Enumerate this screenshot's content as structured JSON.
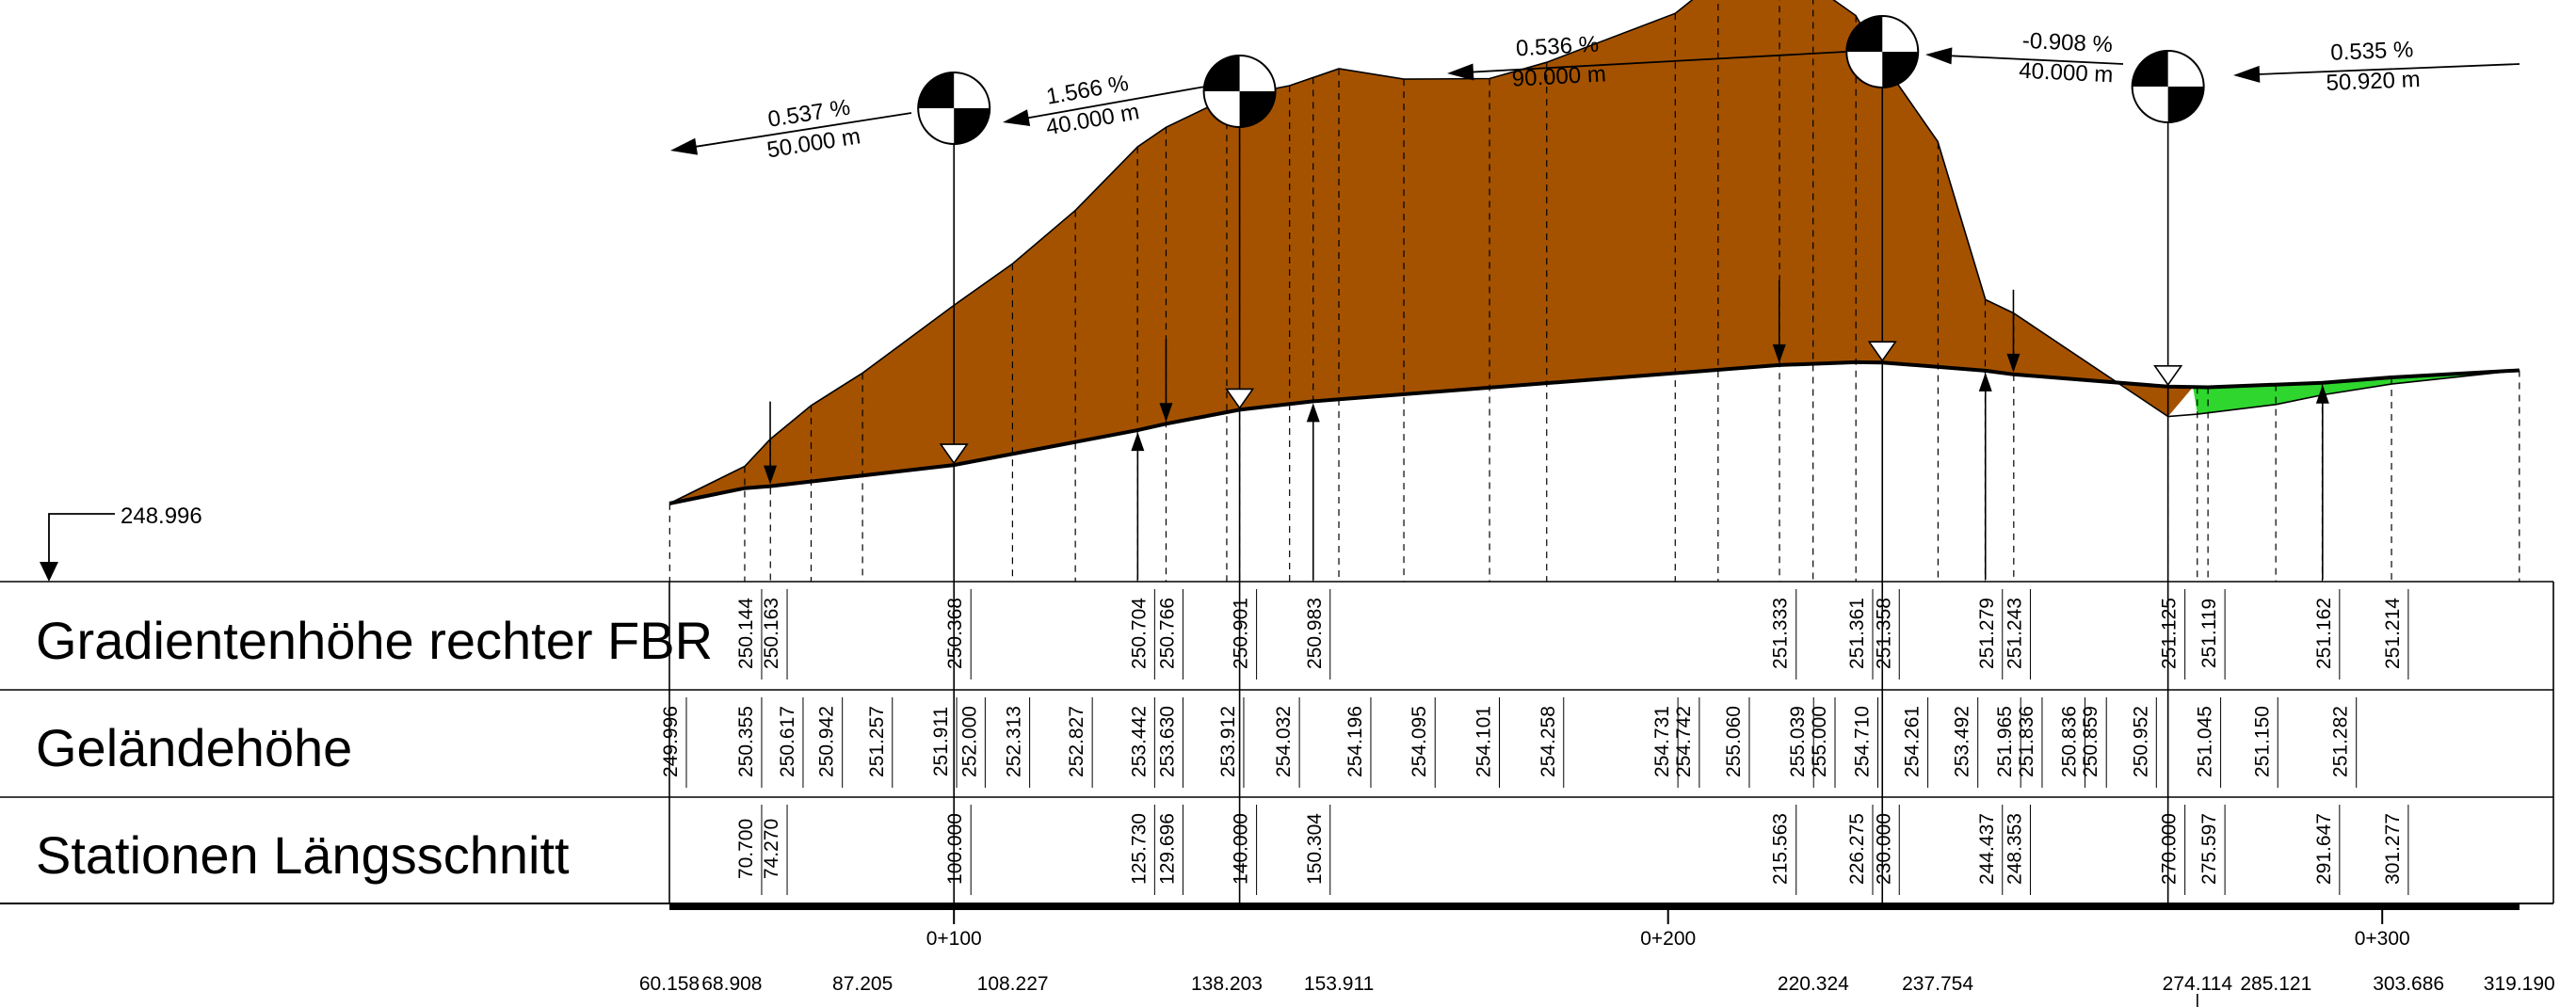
{
  "colors": {
    "cut": "#a45200",
    "fill": "#2ed62e",
    "line": "#000000",
    "background": "#ffffff"
  },
  "reference": {
    "label": "248.996"
  },
  "rows": [
    {
      "label": "Gradientenhöhe rechter FBR"
    },
    {
      "label": "Geländehöhe"
    },
    {
      "label": "Stationen Längsschnitt"
    }
  ],
  "gradient_segments": [
    {
      "slope": "0.537 %",
      "length": "50.000 m"
    },
    {
      "slope": "1.566 %",
      "length": "40.000 m"
    },
    {
      "slope": "0.536 %",
      "length": "90.000 m"
    },
    {
      "slope": "-0.908 %",
      "length": "40.000 m"
    },
    {
      "slope": "0.535 %",
      "length": "50.920 m"
    }
  ],
  "vertical_curve_stations": [
    100,
    140,
    230,
    270
  ],
  "profile_data": {
    "ground": [
      {
        "station": 60.158,
        "elevation": 249.996
      },
      {
        "station": 70.7,
        "elevation": 250.355
      },
      {
        "station": 74.27,
        "elevation": 250.617
      },
      {
        "station": 80.0,
        "elevation": 250.942
      },
      {
        "station": 87.205,
        "elevation": 251.257
      },
      {
        "station": 100.0,
        "elevation": 251.911
      },
      {
        "station": 108.227,
        "elevation": 252.313
      },
      {
        "station": 117.0,
        "elevation": 252.827
      },
      {
        "station": 125.73,
        "elevation": 253.442
      },
      {
        "station": 129.696,
        "elevation": 253.63
      },
      {
        "station": 138.203,
        "elevation": 253.912
      },
      {
        "station": 147.0,
        "elevation": 254.032
      },
      {
        "station": 153.911,
        "elevation": 254.196
      },
      {
        "station": 163.0,
        "elevation": 254.095
      },
      {
        "station": 175.0,
        "elevation": 254.101
      },
      {
        "station": 183.0,
        "elevation": 254.258
      },
      {
        "station": 201.0,
        "elevation": 254.731
      },
      {
        "station": 207.0,
        "elevation": 255.06
      },
      {
        "station": 215.563,
        "elevation": 255.039
      },
      {
        "station": 220.324,
        "elevation": 255.0
      },
      {
        "station": 226.275,
        "elevation": 254.71
      },
      {
        "station": 230.0,
        "elevation": 254.261
      },
      {
        "station": 237.754,
        "elevation": 253.492
      },
      {
        "station": 244.437,
        "elevation": 251.965
      },
      {
        "station": 248.353,
        "elevation": 251.836
      },
      {
        "station": 270.0,
        "elevation": 250.836
      },
      {
        "station": 274.114,
        "elevation": 250.859
      },
      {
        "station": 285.121,
        "elevation": 250.952
      },
      {
        "station": 291.647,
        "elevation": 251.045
      },
      {
        "station": 301.277,
        "elevation": 251.15
      },
      {
        "station": 319.19,
        "elevation": 251.282
      }
    ],
    "grade": [
      {
        "station": 60.158,
        "elevation": 249.996
      },
      {
        "station": 70.7,
        "elevation": 250.144
      },
      {
        "station": 74.27,
        "elevation": 250.163
      },
      {
        "station": 100.0,
        "elevation": 250.368
      },
      {
        "station": 125.73,
        "elevation": 250.704
      },
      {
        "station": 129.696,
        "elevation": 250.766
      },
      {
        "station": 140.0,
        "elevation": 250.901
      },
      {
        "station": 150.304,
        "elevation": 250.983
      },
      {
        "station": 215.563,
        "elevation": 251.333
      },
      {
        "station": 226.275,
        "elevation": 251.361
      },
      {
        "station": 230.0,
        "elevation": 251.358
      },
      {
        "station": 244.437,
        "elevation": 251.279
      },
      {
        "station": 248.353,
        "elevation": 251.243
      },
      {
        "station": 270.0,
        "elevation": 251.125
      },
      {
        "station": 275.597,
        "elevation": 251.119
      },
      {
        "station": 291.647,
        "elevation": 251.162
      },
      {
        "station": 301.277,
        "elevation": 251.214
      },
      {
        "station": 319.19,
        "elevation": 251.282
      }
    ]
  },
  "table": {
    "gradient_heights": [
      {
        "station": 70.7,
        "text": "250.144"
      },
      {
        "station": 74.27,
        "text": "250.163"
      },
      {
        "station": 100.0,
        "text": "250.368"
      },
      {
        "station": 125.73,
        "text": "250.704"
      },
      {
        "station": 129.696,
        "text": "250.766"
      },
      {
        "station": 140.0,
        "text": "250.901"
      },
      {
        "station": 150.304,
        "text": "250.983"
      },
      {
        "station": 215.563,
        "text": "251.333"
      },
      {
        "station": 226.275,
        "text": "251.361"
      },
      {
        "station": 230.0,
        "text": "251.358"
      },
      {
        "station": 244.437,
        "text": "251.279"
      },
      {
        "station": 248.353,
        "text": "251.243"
      },
      {
        "station": 270.0,
        "text": "251.125"
      },
      {
        "station": 275.597,
        "text": "251.119"
      },
      {
        "station": 291.647,
        "text": "251.162"
      },
      {
        "station": 301.277,
        "text": "251.214"
      }
    ],
    "ground_heights": [
      {
        "station": 60.158,
        "text": "249.996"
      },
      {
        "station": 70.7,
        "text": "250.355"
      },
      {
        "station": 76.5,
        "text": "250.617"
      },
      {
        "station": 82.0,
        "text": "250.942"
      },
      {
        "station": 89.0,
        "text": "251.257"
      },
      {
        "station": 98.0,
        "text": "251.911"
      },
      {
        "station": 102.0,
        "text": "252.000"
      },
      {
        "station": 108.227,
        "text": "252.313"
      },
      {
        "station": 117.0,
        "text": "252.827"
      },
      {
        "station": 125.73,
        "text": "253.442"
      },
      {
        "station": 129.696,
        "text": "253.630"
      },
      {
        "station": 138.203,
        "text": "253.912"
      },
      {
        "station": 146.0,
        "text": "254.032"
      },
      {
        "station": 156.0,
        "text": "254.196"
      },
      {
        "station": 165.0,
        "text": "254.095"
      },
      {
        "station": 174.0,
        "text": "254.101"
      },
      {
        "station": 183.0,
        "text": "254.258"
      },
      {
        "station": 199.0,
        "text": "254.731"
      },
      {
        "station": 202.0,
        "text": "254.742"
      },
      {
        "station": 209.0,
        "text": "255.060"
      },
      {
        "station": 218.0,
        "text": "255.039"
      },
      {
        "station": 221.0,
        "text": "255.000"
      },
      {
        "station": 227.0,
        "text": "254.710"
      },
      {
        "station": 234.0,
        "text": "254.261"
      },
      {
        "station": 241.0,
        "text": "253.492"
      },
      {
        "station": 247.0,
        "text": "251.965"
      },
      {
        "station": 250.0,
        "text": "251.836"
      },
      {
        "station": 256.0,
        "text": "250.836"
      },
      {
        "station": 259.0,
        "text": "250.859"
      },
      {
        "station": 266.0,
        "text": "250.952"
      },
      {
        "station": 275.0,
        "text": "251.045"
      },
      {
        "station": 283.0,
        "text": "251.150"
      },
      {
        "station": 294.0,
        "text": "251.282"
      }
    ],
    "stations": [
      {
        "station": 70.7,
        "text": "70.700"
      },
      {
        "station": 74.27,
        "text": "74.270"
      },
      {
        "station": 100.0,
        "text": "100.000"
      },
      {
        "station": 125.73,
        "text": "125.730"
      },
      {
        "station": 129.696,
        "text": "129.696"
      },
      {
        "station": 140.0,
        "text": "140.000"
      },
      {
        "station": 150.304,
        "text": "150.304"
      },
      {
        "station": 215.563,
        "text": "215.563"
      },
      {
        "station": 226.275,
        "text": "226.275"
      },
      {
        "station": 230.0,
        "text": "230.000"
      },
      {
        "station": 244.437,
        "text": "244.437"
      },
      {
        "station": 248.353,
        "text": "248.353"
      },
      {
        "station": 270.0,
        "text": "270.000"
      },
      {
        "station": 275.597,
        "text": "275.597"
      },
      {
        "station": 291.647,
        "text": "291.647"
      },
      {
        "station": 301.277,
        "text": "301.277"
      }
    ]
  },
  "chainage_ticks": [
    {
      "station": 100,
      "label": "0+100"
    },
    {
      "station": 200,
      "label": "0+200"
    },
    {
      "station": 300,
      "label": "0+300"
    }
  ],
  "bottom_stations": [
    {
      "station": 60.158,
      "text": "60.158"
    },
    {
      "station": 68.908,
      "text": "68.908"
    },
    {
      "station": 87.205,
      "text": "87.205"
    },
    {
      "station": 108.227,
      "text": "108.227"
    },
    {
      "station": 138.203,
      "text": "138.203"
    },
    {
      "station": 153.911,
      "text": "153.911"
    },
    {
      "station": 220.324,
      "text": "220.324"
    },
    {
      "station": 237.754,
      "text": "237.754"
    },
    {
      "station": 274.114,
      "text": "274.114"
    },
    {
      "station": 285.121,
      "text": "285.121"
    },
    {
      "station": 303.686,
      "text": "303.686"
    },
    {
      "station": 319.19,
      "text": "319.190"
    }
  ]
}
